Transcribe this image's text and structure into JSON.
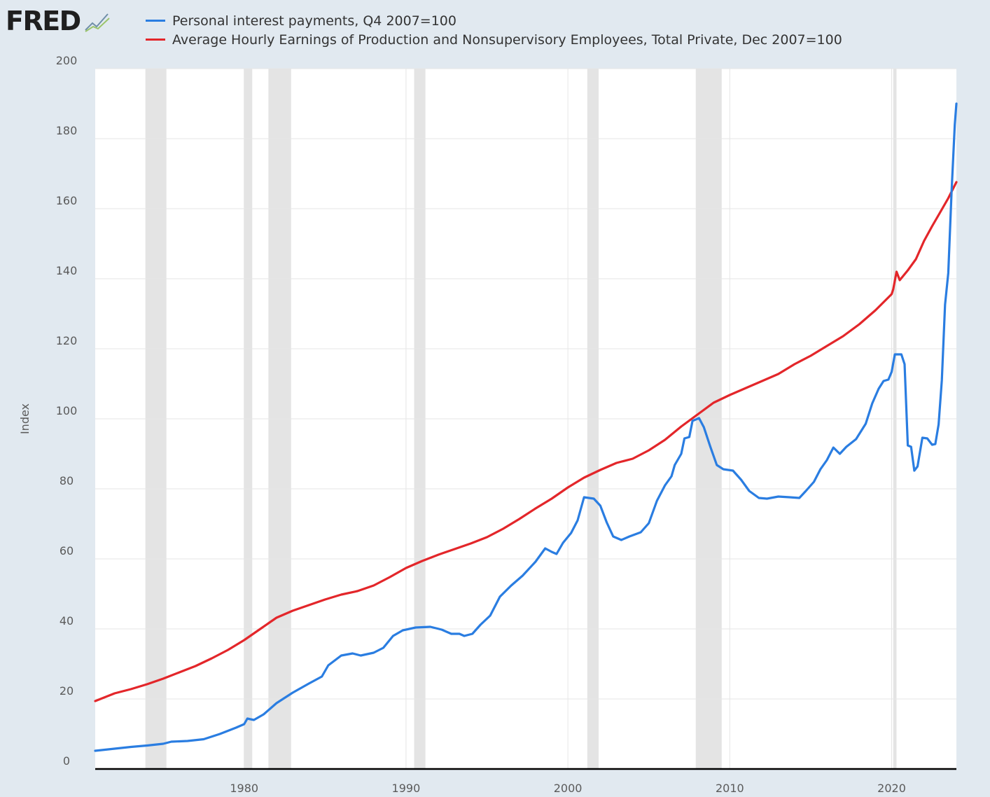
{
  "logo": {
    "text": "FRED",
    "icon": "trend-line-icon"
  },
  "colors": {
    "series1": "#2a7de1",
    "series2": "#e3262a",
    "recession": "#e4e4e4",
    "plot_bg": "#ffffff",
    "page_bg": "#e1e9f0"
  },
  "chart_data": {
    "type": "line",
    "ylabel": "Index",
    "xlabel": "",
    "xlim": [
      1970.8,
      2024.0
    ],
    "ylim": [
      0,
      200
    ],
    "y_ticks": [
      0,
      20,
      40,
      60,
      80,
      100,
      120,
      140,
      160,
      180,
      200
    ],
    "x_ticks": [
      1980,
      1990,
      2000,
      2010,
      2020
    ],
    "grid": true,
    "legend_position": "top",
    "recessions": [
      [
        1973.9,
        1975.2
      ],
      [
        1980.0,
        1980.5
      ],
      [
        1981.5,
        1982.9
      ],
      [
        1990.5,
        1991.2
      ],
      [
        2001.2,
        2001.9
      ],
      [
        2007.9,
        2009.5
      ],
      [
        2020.1,
        2020.3
      ]
    ],
    "series": [
      {
        "name": "Personal interest payments, Q4 2007=100",
        "color": "#2a7de1",
        "points": [
          [
            1970.8,
            5.2
          ],
          [
            1972,
            5.8
          ],
          [
            1973,
            6.3
          ],
          [
            1974,
            6.7
          ],
          [
            1975,
            7.2
          ],
          [
            1975.5,
            7.8
          ],
          [
            1976.5,
            8.0
          ],
          [
            1977.5,
            8.5
          ],
          [
            1978.5,
            10.0
          ],
          [
            1979.5,
            11.8
          ],
          [
            1980.0,
            12.8
          ],
          [
            1980.2,
            14.4
          ],
          [
            1980.6,
            14.0
          ],
          [
            1981.2,
            15.6
          ],
          [
            1982,
            18.8
          ],
          [
            1983,
            21.8
          ],
          [
            1984,
            24.4
          ],
          [
            1984.8,
            26.4
          ],
          [
            1985.2,
            29.6
          ],
          [
            1986,
            32.4
          ],
          [
            1986.7,
            33.0
          ],
          [
            1987.2,
            32.4
          ],
          [
            1988,
            33.2
          ],
          [
            1988.6,
            34.6
          ],
          [
            1989.2,
            38.0
          ],
          [
            1989.8,
            39.6
          ],
          [
            1990.6,
            40.4
          ],
          [
            1991.5,
            40.6
          ],
          [
            1992.2,
            39.8
          ],
          [
            1992.8,
            38.6
          ],
          [
            1993.3,
            38.6
          ],
          [
            1993.6,
            38.0
          ],
          [
            1994.1,
            38.6
          ],
          [
            1994.6,
            41.2
          ],
          [
            1995.2,
            43.8
          ],
          [
            1995.8,
            49.2
          ],
          [
            1996.5,
            52.4
          ],
          [
            1997.2,
            55.2
          ],
          [
            1998,
            59.2
          ],
          [
            1998.6,
            63.0
          ],
          [
            1999.0,
            62.0
          ],
          [
            1999.3,
            61.4
          ],
          [
            1999.7,
            64.6
          ],
          [
            2000.2,
            67.4
          ],
          [
            2000.6,
            71.0
          ],
          [
            2001.0,
            77.6
          ],
          [
            2001.6,
            77.2
          ],
          [
            2002.0,
            75.2
          ],
          [
            2002.4,
            70.4
          ],
          [
            2002.8,
            66.4
          ],
          [
            2003.3,
            65.4
          ],
          [
            2003.8,
            66.4
          ],
          [
            2004.5,
            67.6
          ],
          [
            2005.0,
            70.2
          ],
          [
            2005.5,
            76.6
          ],
          [
            2006.0,
            81.0
          ],
          [
            2006.4,
            83.6
          ],
          [
            2006.6,
            86.8
          ],
          [
            2007.0,
            90.0
          ],
          [
            2007.2,
            94.4
          ],
          [
            2007.5,
            94.8
          ],
          [
            2007.7,
            99.4
          ],
          [
            2008.1,
            100.2
          ],
          [
            2008.4,
            97.6
          ],
          [
            2008.8,
            92.0
          ],
          [
            2009.2,
            86.8
          ],
          [
            2009.6,
            85.6
          ],
          [
            2010.2,
            85.2
          ],
          [
            2010.7,
            82.6
          ],
          [
            2011.2,
            79.4
          ],
          [
            2011.8,
            77.4
          ],
          [
            2012.3,
            77.2
          ],
          [
            2013.0,
            77.8
          ],
          [
            2013.7,
            77.6
          ],
          [
            2014.3,
            77.4
          ],
          [
            2014.7,
            79.4
          ],
          [
            2015.2,
            82.0
          ],
          [
            2015.6,
            85.6
          ],
          [
            2016.0,
            88.2
          ],
          [
            2016.4,
            91.8
          ],
          [
            2016.8,
            90.0
          ],
          [
            2017.2,
            92.0
          ],
          [
            2017.8,
            94.2
          ],
          [
            2018.4,
            98.6
          ],
          [
            2018.8,
            104.4
          ],
          [
            2019.2,
            108.6
          ],
          [
            2019.5,
            110.8
          ],
          [
            2019.8,
            111.2
          ],
          [
            2020.0,
            113.4
          ],
          [
            2020.2,
            118.4
          ],
          [
            2020.6,
            118.4
          ],
          [
            2020.8,
            115.6
          ],
          [
            2021.0,
            92.4
          ],
          [
            2021.2,
            92.0
          ],
          [
            2021.4,
            85.2
          ],
          [
            2021.6,
            86.4
          ],
          [
            2021.9,
            94.6
          ],
          [
            2022.2,
            94.4
          ],
          [
            2022.5,
            92.6
          ],
          [
            2022.7,
            92.8
          ],
          [
            2022.9,
            98.4
          ],
          [
            2023.1,
            111.0
          ],
          [
            2023.3,
            132.6
          ],
          [
            2023.5,
            141.6
          ],
          [
            2023.7,
            164.8
          ],
          [
            2023.9,
            184.0
          ],
          [
            2024.0,
            190.0
          ]
        ]
      },
      {
        "name": "Average Hourly Earnings of Production and Nonsupervisory Employees, Total Private, Dec 2007=100",
        "color": "#e3262a",
        "points": [
          [
            1970.8,
            19.4
          ],
          [
            1972,
            21.6
          ],
          [
            1973,
            22.8
          ],
          [
            1974,
            24.2
          ],
          [
            1975,
            25.8
          ],
          [
            1976,
            27.6
          ],
          [
            1977,
            29.4
          ],
          [
            1978,
            31.6
          ],
          [
            1979,
            34.0
          ],
          [
            1980,
            36.8
          ],
          [
            1981,
            40.0
          ],
          [
            1982,
            43.2
          ],
          [
            1983,
            45.2
          ],
          [
            1984,
            46.8
          ],
          [
            1985,
            48.4
          ],
          [
            1986,
            49.8
          ],
          [
            1987,
            50.8
          ],
          [
            1988,
            52.4
          ],
          [
            1989,
            54.8
          ],
          [
            1990,
            57.4
          ],
          [
            1991,
            59.4
          ],
          [
            1992,
            61.2
          ],
          [
            1993,
            62.8
          ],
          [
            1994,
            64.4
          ],
          [
            1995,
            66.2
          ],
          [
            1996,
            68.6
          ],
          [
            1997,
            71.4
          ],
          [
            1998,
            74.4
          ],
          [
            1999,
            77.2
          ],
          [
            2000,
            80.4
          ],
          [
            2001,
            83.2
          ],
          [
            2002,
            85.4
          ],
          [
            2003,
            87.4
          ],
          [
            2004,
            88.6
          ],
          [
            2005,
            91.0
          ],
          [
            2006,
            94.0
          ],
          [
            2007,
            97.8
          ],
          [
            2008,
            101.2
          ],
          [
            2009,
            104.6
          ],
          [
            2010,
            106.8
          ],
          [
            2011,
            108.8
          ],
          [
            2012,
            110.8
          ],
          [
            2013,
            112.8
          ],
          [
            2014,
            115.6
          ],
          [
            2015,
            118.0
          ],
          [
            2016,
            120.8
          ],
          [
            2017,
            123.6
          ],
          [
            2018,
            127.0
          ],
          [
            2019,
            131.0
          ],
          [
            2020.0,
            135.6
          ],
          [
            2020.1,
            137.0
          ],
          [
            2020.3,
            142.0
          ],
          [
            2020.5,
            139.6
          ],
          [
            2021.0,
            142.4
          ],
          [
            2021.5,
            145.6
          ],
          [
            2022.0,
            150.8
          ],
          [
            2022.5,
            155.0
          ],
          [
            2023.0,
            159.0
          ],
          [
            2023.5,
            163.0
          ],
          [
            2024.0,
            167.6
          ]
        ]
      }
    ]
  }
}
